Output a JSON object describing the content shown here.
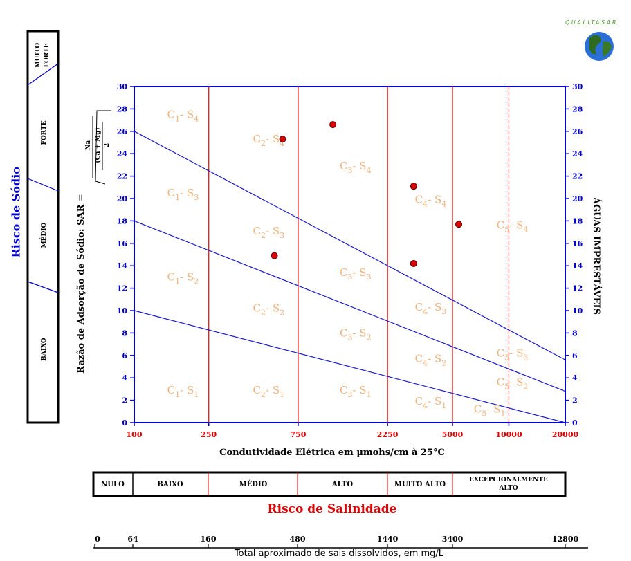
{
  "chart_data": {
    "type": "scatter",
    "title": "",
    "x_scale": "log",
    "xlabel": "Condutividade Elétrica em µmohs/cm à 25°C",
    "ylabel_left": "Razão de Adsorção de Sódio: SAR =",
    "ylabel_right": "ÁGUAS IMPRESTÁVEIS",
    "formula": {
      "numerator": "Na",
      "denominator": "(Ca + Mg)",
      "divisor": "2"
    },
    "xlim": [
      100,
      20000
    ],
    "ylim": [
      0,
      30
    ],
    "x_ticks": [
      {
        "value": 100,
        "label": "100"
      },
      {
        "value": 250,
        "label": "250"
      },
      {
        "value": 750,
        "label": "750"
      },
      {
        "value": 2250,
        "label": "2250"
      },
      {
        "value": 5000,
        "label": "5000"
      },
      {
        "value": 10000,
        "label": "10000"
      },
      {
        "value": 20000,
        "label": "20000"
      }
    ],
    "y_ticks": [
      0,
      2,
      4,
      6,
      8,
      10,
      12,
      14,
      16,
      18,
      20,
      22,
      24,
      26,
      28,
      30
    ],
    "vertical_lines": [
      {
        "x": 250,
        "style": "solid"
      },
      {
        "x": 750,
        "style": "solid"
      },
      {
        "x": 2250,
        "style": "solid"
      },
      {
        "x": 5000,
        "style": "solid"
      },
      {
        "x": 10000,
        "style": "dashed"
      }
    ],
    "boundary_lines": [
      {
        "from": [
          100,
          10
        ],
        "to": [
          20000,
          0
        ]
      },
      {
        "from": [
          100,
          18
        ],
        "to": [
          20000,
          2.8
        ]
      },
      {
        "from": [
          100,
          26
        ],
        "to": [
          20000,
          5.6
        ]
      }
    ],
    "points": [
      {
        "x": 620,
        "y": 25.3
      },
      {
        "x": 1150,
        "y": 26.6
      },
      {
        "x": 560,
        "y": 14.9
      },
      {
        "x": 3100,
        "y": 21.1
      },
      {
        "x": 3100,
        "y": 14.2
      },
      {
        "x": 5400,
        "y": 17.7
      }
    ],
    "classes": [
      {
        "c": "1",
        "s": "4",
        "x": 150,
        "y": 27.2
      },
      {
        "c": "2",
        "s": "4",
        "x": 430,
        "y": 25.0
      },
      {
        "c": "3",
        "s": "4",
        "x": 1250,
        "y": 22.6
      },
      {
        "c": "4",
        "s": "4",
        "x": 3150,
        "y": 19.6
      },
      {
        "c": "5",
        "s": "4",
        "x": 8600,
        "y": 17.3
      },
      {
        "c": "1",
        "s": "3",
        "x": 150,
        "y": 20.2
      },
      {
        "c": "2",
        "s": "3",
        "x": 430,
        "y": 16.8
      },
      {
        "c": "3",
        "s": "3",
        "x": 1250,
        "y": 13.1
      },
      {
        "c": "4",
        "s": "3",
        "x": 3150,
        "y": 10.0
      },
      {
        "c": "5",
        "s": "3",
        "x": 8600,
        "y": 5.9
      },
      {
        "c": "1",
        "s": "2",
        "x": 150,
        "y": 12.7
      },
      {
        "c": "2",
        "s": "2",
        "x": 430,
        "y": 9.9
      },
      {
        "c": "3",
        "s": "2",
        "x": 1250,
        "y": 7.7
      },
      {
        "c": "4",
        "s": "2",
        "x": 3150,
        "y": 5.4
      },
      {
        "c": "5",
        "s": "2",
        "x": 8600,
        "y": 3.3
      },
      {
        "c": "1",
        "s": "1",
        "x": 150,
        "y": 2.6
      },
      {
        "c": "2",
        "s": "1",
        "x": 430,
        "y": 2.6
      },
      {
        "c": "3",
        "s": "1",
        "x": 1250,
        "y": 2.6
      },
      {
        "c": "4",
        "s": "1",
        "x": 3150,
        "y": 1.6
      },
      {
        "c": "5",
        "s": "1",
        "x": 6500,
        "y": 0.9
      }
    ],
    "class_label_prefix_c": "C",
    "class_label_prefix_s": "S",
    "colors": {
      "axis": "#0000cc",
      "boundary": "#1a1acc",
      "vertical": "#dd0000",
      "point": "#dd0000",
      "class_label": "#f0b27a",
      "x_tick_label": "#dd0000",
      "y_tick_label": "#0000cc"
    }
  },
  "sodium_risk": {
    "title": "Risco de Sódio",
    "levels": [
      "BAIXO",
      "MÉDIO",
      "FORTE",
      "MUITO FORTE"
    ]
  },
  "salinity_risk": {
    "title": "Risco de Salinidade",
    "levels": [
      "NULO",
      "BAIXO",
      "MÉDIO",
      "ALTO",
      "MUITO ALTO",
      "EXCEPCIONALMENTE ALTO"
    ]
  },
  "tds_scale": {
    "label": "Total aproximado de sais dissolvidos, em mg/L",
    "ticks": [
      "0",
      "64",
      "160",
      "480",
      "1440",
      "3400",
      "12800"
    ]
  },
  "logo": {
    "text": "Q.U.A.L.I.T.A.S.A.R."
  }
}
